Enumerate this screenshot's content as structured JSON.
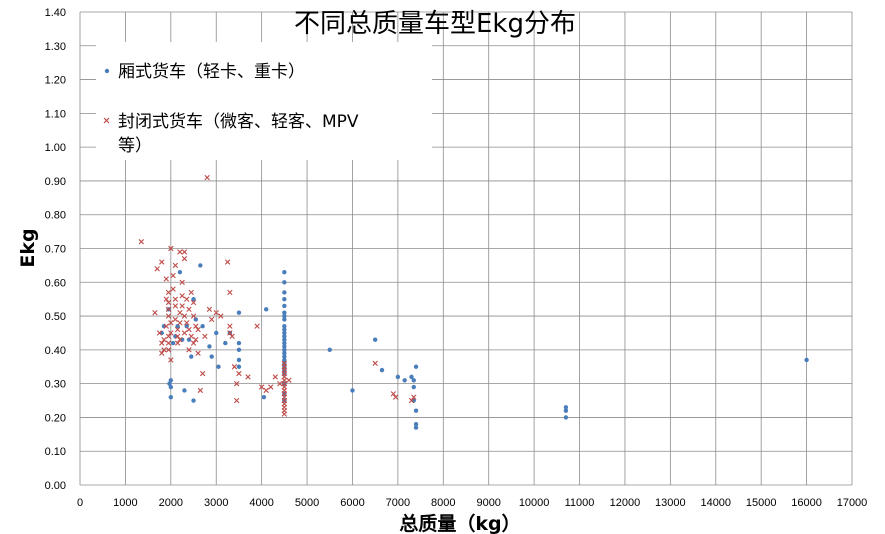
{
  "chart_data": {
    "type": "scatter",
    "title": "不同总质量车型Ekg分布",
    "xlabel": "总质量（kg）",
    "ylabel": "Ekg",
    "xlim": [
      0,
      17000
    ],
    "ylim": [
      0,
      1.4
    ],
    "x_ticks": [
      "0",
      "1000",
      "2000",
      "3000",
      "4000",
      "5000",
      "6000",
      "7000",
      "8000",
      "9000",
      "10000",
      "11000",
      "12000",
      "13000",
      "14000",
      "15000",
      "16000",
      "17000"
    ],
    "y_ticks": [
      "0.00",
      "0.10",
      "0.20",
      "0.30",
      "0.40",
      "0.50",
      "0.60",
      "0.70",
      "0.80",
      "0.90",
      "1.00",
      "1.10",
      "1.20",
      "1.30",
      "1.40"
    ],
    "grid": true,
    "legend_position": "top-left",
    "series": [
      {
        "name": "厢式货车（轻卡、重卡）",
        "color": "#4a7ebb",
        "marker": "dot",
        "points": [
          [
            1800,
            0.45
          ],
          [
            1850,
            0.47
          ],
          [
            1950,
            0.52
          ],
          [
            1970,
            0.3
          ],
          [
            2000,
            0.29
          ],
          [
            2000,
            0.26
          ],
          [
            2000,
            0.31
          ],
          [
            2050,
            0.42
          ],
          [
            2100,
            0.44
          ],
          [
            2150,
            0.47
          ],
          [
            2200,
            0.63
          ],
          [
            2250,
            0.43
          ],
          [
            2300,
            0.28
          ],
          [
            2350,
            0.47
          ],
          [
            2400,
            0.43
          ],
          [
            2450,
            0.38
          ],
          [
            2500,
            0.25
          ],
          [
            2500,
            0.55
          ],
          [
            2550,
            0.49
          ],
          [
            2650,
            0.65
          ],
          [
            2700,
            0.47
          ],
          [
            2850,
            0.41
          ],
          [
            2900,
            0.38
          ],
          [
            3000,
            0.45
          ],
          [
            3050,
            0.35
          ],
          [
            3200,
            0.42
          ],
          [
            3300,
            0.45
          ],
          [
            3500,
            0.51
          ],
          [
            3500,
            0.42
          ],
          [
            3500,
            0.4
          ],
          [
            3500,
            0.37
          ],
          [
            3500,
            0.35
          ],
          [
            4050,
            0.26
          ],
          [
            4100,
            0.52
          ],
          [
            4500,
            0.63
          ],
          [
            4500,
            0.6
          ],
          [
            4500,
            0.57
          ],
          [
            4500,
            0.55
          ],
          [
            4500,
            0.53
          ],
          [
            4500,
            0.51
          ],
          [
            4500,
            0.5
          ],
          [
            4500,
            0.49
          ],
          [
            4500,
            0.47
          ],
          [
            4500,
            0.46
          ],
          [
            4500,
            0.45
          ],
          [
            4500,
            0.44
          ],
          [
            4500,
            0.43
          ],
          [
            4500,
            0.42
          ],
          [
            4500,
            0.41
          ],
          [
            4500,
            0.4
          ],
          [
            4500,
            0.39
          ],
          [
            4500,
            0.38
          ],
          [
            4500,
            0.37
          ],
          [
            4500,
            0.36
          ],
          [
            4500,
            0.35
          ],
          [
            4500,
            0.34
          ],
          [
            4500,
            0.33
          ],
          [
            4500,
            0.3
          ],
          [
            4500,
            0.27
          ],
          [
            4500,
            0.25
          ],
          [
            5500,
            0.4
          ],
          [
            6000,
            0.28
          ],
          [
            6500,
            0.43
          ],
          [
            6650,
            0.34
          ],
          [
            7000,
            0.32
          ],
          [
            7150,
            0.31
          ],
          [
            7300,
            0.32
          ],
          [
            7350,
            0.31
          ],
          [
            7350,
            0.29
          ],
          [
            7350,
            0.25
          ],
          [
            7400,
            0.35
          ],
          [
            7400,
            0.22
          ],
          [
            7400,
            0.18
          ],
          [
            7400,
            0.17
          ],
          [
            10700,
            0.23
          ],
          [
            10700,
            0.22
          ],
          [
            10700,
            0.2
          ],
          [
            16000,
            0.37
          ]
        ]
      },
      {
        "name": "封闭式货车（微客、轻客、MPV等）",
        "color": "#be4b48",
        "marker": "x",
        "points": [
          [
            1350,
            0.72
          ],
          [
            1650,
            0.51
          ],
          [
            1700,
            0.64
          ],
          [
            1750,
            0.45
          ],
          [
            1800,
            0.42
          ],
          [
            1800,
            0.39
          ],
          [
            1800,
            0.66
          ],
          [
            1850,
            0.4
          ],
          [
            1850,
            0.43
          ],
          [
            1900,
            0.47
          ],
          [
            1900,
            0.55
          ],
          [
            1900,
            0.61
          ],
          [
            1950,
            0.5
          ],
          [
            1950,
            0.52
          ],
          [
            1950,
            0.54
          ],
          [
            1950,
            0.57
          ],
          [
            1950,
            0.44
          ],
          [
            1950,
            0.42
          ],
          [
            1950,
            0.4
          ],
          [
            2000,
            0.7
          ],
          [
            2000,
            0.48
          ],
          [
            2000,
            0.45
          ],
          [
            2000,
            0.37
          ],
          [
            2050,
            0.62
          ],
          [
            2050,
            0.58
          ],
          [
            2100,
            0.65
          ],
          [
            2100,
            0.55
          ],
          [
            2100,
            0.53
          ],
          [
            2100,
            0.49
          ],
          [
            2150,
            0.46
          ],
          [
            2150,
            0.44
          ],
          [
            2150,
            0.42
          ],
          [
            2200,
            0.69
          ],
          [
            2200,
            0.51
          ],
          [
            2200,
            0.48
          ],
          [
            2200,
            0.43
          ],
          [
            2250,
            0.6
          ],
          [
            2250,
            0.56
          ],
          [
            2250,
            0.53
          ],
          [
            2300,
            0.69
          ],
          [
            2300,
            0.67
          ],
          [
            2300,
            0.5
          ],
          [
            2300,
            0.45
          ],
          [
            2350,
            0.55
          ],
          [
            2350,
            0.48
          ],
          [
            2400,
            0.52
          ],
          [
            2400,
            0.46
          ],
          [
            2400,
            0.4
          ],
          [
            2450,
            0.57
          ],
          [
            2450,
            0.44
          ],
          [
            2500,
            0.54
          ],
          [
            2500,
            0.5
          ],
          [
            2500,
            0.42
          ],
          [
            2550,
            0.47
          ],
          [
            2550,
            0.43
          ],
          [
            2600,
            0.46
          ],
          [
            2600,
            0.39
          ],
          [
            2650,
            0.28
          ],
          [
            2700,
            0.33
          ],
          [
            2750,
            0.44
          ],
          [
            2800,
            0.91
          ],
          [
            2850,
            0.52
          ],
          [
            2900,
            0.49
          ],
          [
            3000,
            0.51
          ],
          [
            3100,
            0.5
          ],
          [
            3250,
            0.66
          ],
          [
            3300,
            0.57
          ],
          [
            3300,
            0.47
          ],
          [
            3300,
            0.45
          ],
          [
            3350,
            0.44
          ],
          [
            3400,
            0.35
          ],
          [
            3450,
            0.3
          ],
          [
            3450,
            0.25
          ],
          [
            3500,
            0.33
          ],
          [
            3700,
            0.32
          ],
          [
            3900,
            0.47
          ],
          [
            4000,
            0.29
          ],
          [
            4100,
            0.28
          ],
          [
            4200,
            0.29
          ],
          [
            4300,
            0.32
          ],
          [
            4400,
            0.3
          ],
          [
            4500,
            0.36
          ],
          [
            4500,
            0.34
          ],
          [
            4500,
            0.32
          ],
          [
            4500,
            0.31
          ],
          [
            4500,
            0.3
          ],
          [
            4500,
            0.29
          ],
          [
            4500,
            0.28
          ],
          [
            4500,
            0.27
          ],
          [
            4500,
            0.26
          ],
          [
            4500,
            0.25
          ],
          [
            4500,
            0.24
          ],
          [
            4500,
            0.23
          ],
          [
            4500,
            0.22
          ],
          [
            4500,
            0.21
          ],
          [
            4500,
            0.35
          ],
          [
            4500,
            0.33
          ],
          [
            4600,
            0.31
          ],
          [
            6500,
            0.36
          ],
          [
            6900,
            0.27
          ],
          [
            6950,
            0.26
          ],
          [
            7300,
            0.25
          ],
          [
            7350,
            0.26
          ]
        ]
      }
    ]
  }
}
